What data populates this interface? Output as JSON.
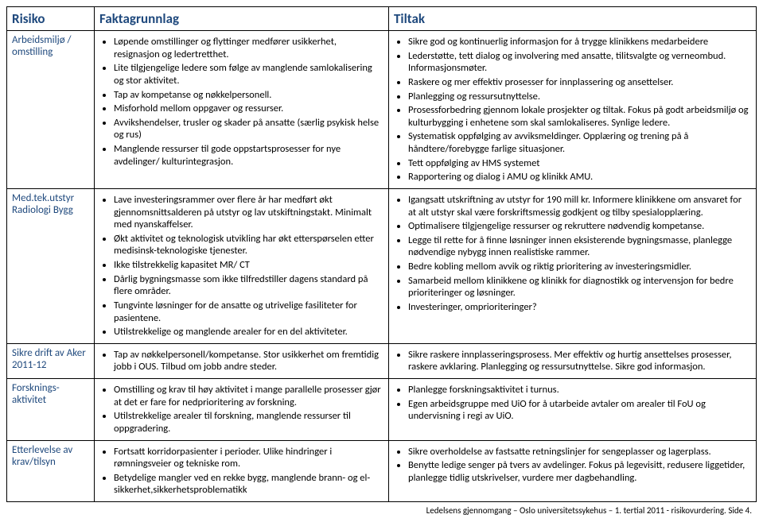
{
  "headers": {
    "c1": "Risiko",
    "c2": "Faktagrunnlag",
    "c3": "Tiltak"
  },
  "rows": [
    {
      "risk": "Arbeidsmiljø / omstilling",
      "fakta": [
        "Løpende omstillinger og flyttinger medfører usikkerhet, resignasjon og ledertretthet.",
        "Lite tilgjengelige ledere som følge av manglende samlokalisering og stor aktivitet.",
        "Tap av kompetanse og nøkkelpersonell.",
        "Misforhold mellom oppgaver og ressurser.",
        "Avvikshendelser, trusler og skader på ansatte (særlig psykisk helse og rus)",
        "Manglende ressurser til gode oppstartsprosesser for nye avdelinger/ kulturintegrasjon."
      ],
      "tiltak": [
        "Sikre god og kontinuerlig informasjon for å trygge klinikkens medarbeidere",
        "Lederstøtte, tett dialog og involvering med ansatte, tilitsvalgte og verneombud. Informasjonsmøter.",
        "Raskere og mer effektiv prosesser for innplassering og ansettelser.",
        "Planlegging og ressursutnyttelse.",
        "Prosessforbedring gjennom lokale prosjekter og tiltak. Fokus på godt arbeidsmiljø og kulturbygging i enhetene som skal samlokaliseres. Synlige ledere.",
        "Systematisk oppfølging av avviksmeldinger. Opplæring og trening på å håndtere/forebygge farlige situasjoner.",
        "Tett oppfølging av HMS systemet",
        "Rapportering  og dialog i AMU og klinikk AMU."
      ]
    },
    {
      "risk": "Med.tek.utstyr Radiologi Bygg",
      "fakta": [
        "Lave investeringsrammer over flere år har medført økt gjennomsnittsalderen på utstyr og lav utskiftningstakt. Minimalt med nyanskaffelser.",
        "Økt aktivitet og teknologisk utvikling har økt etterspørselen etter medisinsk-teknologiske tjenester.",
        "Ikke tilstrekkelig kapasitet MR/ CT",
        "Dårlig bygningsmasse som ikke tilfredstiller dagens standard på flere områder.",
        "Tungvinte løsninger for de ansatte og utrivelige fasiliteter for pasientene.",
        "Utilstrekkelige og manglende arealer for en del aktiviteter."
      ],
      "tiltak": [
        "Igangsatt utskriftning av utstyr for 190 mill kr. Informere klinikkene om ansvaret for at alt utstyr skal være forskriftsmessig godkjent og tilby spesialopplæring.",
        "Optimalisere tilgjengelige ressurser og rekruttere nødvendig kompetanse.",
        "Legge til rette for å finne løsninger innen eksisterende bygningsmasse, planlegge nødvendige nybygg innen realistiske rammer.",
        "Bedre kobling mellom avvik og riktig prioritering av investeringsmidler.",
        "Samarbeid mellom klinikkene og klinikk for diagnostikk og intervensjon for bedre prioriteringer og løsninger.",
        "Investeringer, omprioriteringer?"
      ]
    },
    {
      "risk": "Sikre drift av Aker 2011-12",
      "fakta": [
        "Tap av nøkkelpersonell/kompetanse. Stor usikkerhet om fremtidig jobb i OUS. Tilbud om jobb andre steder."
      ],
      "tiltak": [
        "Sikre raskere innplasseringsprosess. Mer effektiv og hurtig ansettelses prosesser, raskere avklaring. Planlegging og ressursutnyttelse. Sikre god informasjon."
      ]
    },
    {
      "risk": "Forsknings-aktivitet",
      "fakta": [
        "Omstilling og krav til høy aktivitet i mange parallelle prosesser gjør at det er fare for nedprioritering av forskning.",
        "Utilstrekkelige arealer til forskning, manglende ressurser til oppgradering."
      ],
      "tiltak": [
        "Planlegge forskningsaktivitet i turnus.",
        "Egen arbeidsgruppe med UiO for å utarbeide avtaler om arealer til FoU og undervisning i regi av UiO."
      ]
    },
    {
      "risk": "Etterlevelse av krav/tilsyn",
      "fakta": [
        "Fortsatt korridorpasienter i perioder. Ulike hindringer i rømningsveier og tekniske rom.",
        "Betydelige mangler ved en rekke bygg, manglende brann- og el-sikkerhet,sikkerhetsproblematikk"
      ],
      "tiltak": [
        "Sikre overholdelse av fastsatte retningslinjer for sengeplasser og lagerplass.",
        "Benytte ledige senger på tvers av avdelinger. Fokus på legevisitt, redusere liggetider, planlegge tidlig utskrivelser, vurdere mer dagbehandling."
      ]
    }
  ],
  "footer": "Ledelsens gjennomgang – Oslo universitetssykehus – 1. tertial 2011 - risikovurdering. Side 4."
}
